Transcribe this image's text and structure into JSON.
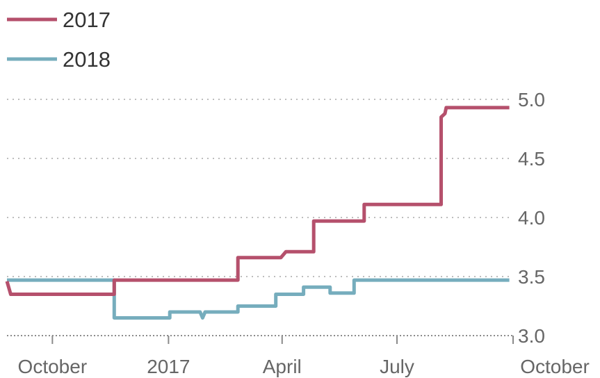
{
  "chart_data": {
    "type": "line",
    "step": true,
    "grid": true,
    "legend_position": "top-left",
    "ylim": [
      3.0,
      5.0
    ],
    "yticks": [
      "3.0",
      "3.5",
      "4.0",
      "4.5",
      "5.0"
    ],
    "ytick_values": [
      3.0,
      3.5,
      4.0,
      4.5,
      5.0
    ],
    "xlim": [
      "2016-08-26",
      "2017-10-01"
    ],
    "xticks": [
      {
        "label": "October",
        "date": "2016-10-01"
      },
      {
        "label": "2017",
        "date": "2017-01-01"
      },
      {
        "label": "April",
        "date": "2017-04-01"
      },
      {
        "label": "July",
        "date": "2017-07-01"
      },
      {
        "label": "October",
        "date": "2017-10-01"
      }
    ],
    "series": [
      {
        "name": "2017",
        "color": "#b5506c",
        "points": [
          [
            "2016-08-26",
            3.46
          ],
          [
            "2016-08-29",
            3.35
          ],
          [
            "2016-11-19",
            3.35
          ],
          [
            "2016-11-19",
            3.47
          ],
          [
            "2017-02-25",
            3.47
          ],
          [
            "2017-02-25",
            3.66
          ],
          [
            "2017-03-31",
            3.66
          ],
          [
            "2017-04-04",
            3.71
          ],
          [
            "2017-04-26",
            3.71
          ],
          [
            "2017-04-26",
            3.97
          ],
          [
            "2017-06-05",
            3.97
          ],
          [
            "2017-06-05",
            4.11
          ],
          [
            "2017-08-05",
            4.11
          ],
          [
            "2017-08-05",
            4.85
          ],
          [
            "2017-08-08",
            4.88
          ],
          [
            "2017-08-09",
            4.93
          ],
          [
            "2017-09-28",
            4.93
          ]
        ]
      },
      {
        "name": "2018",
        "color": "#76adbd",
        "points": [
          [
            "2016-08-26",
            3.47
          ],
          [
            "2016-11-19",
            3.47
          ],
          [
            "2016-11-19",
            3.15
          ],
          [
            "2017-01-02",
            3.15
          ],
          [
            "2017-01-02",
            3.2
          ],
          [
            "2017-01-26",
            3.2
          ],
          [
            "2017-01-28",
            3.15
          ],
          [
            "2017-01-30",
            3.2
          ],
          [
            "2017-02-25",
            3.2
          ],
          [
            "2017-02-25",
            3.25
          ],
          [
            "2017-03-27",
            3.25
          ],
          [
            "2017-03-27",
            3.35
          ],
          [
            "2017-04-18",
            3.35
          ],
          [
            "2017-04-18",
            3.41
          ],
          [
            "2017-05-09",
            3.41
          ],
          [
            "2017-05-09",
            3.36
          ],
          [
            "2017-05-28",
            3.36
          ],
          [
            "2017-05-28",
            3.47
          ],
          [
            "2017-09-28",
            3.47
          ]
        ]
      }
    ]
  }
}
